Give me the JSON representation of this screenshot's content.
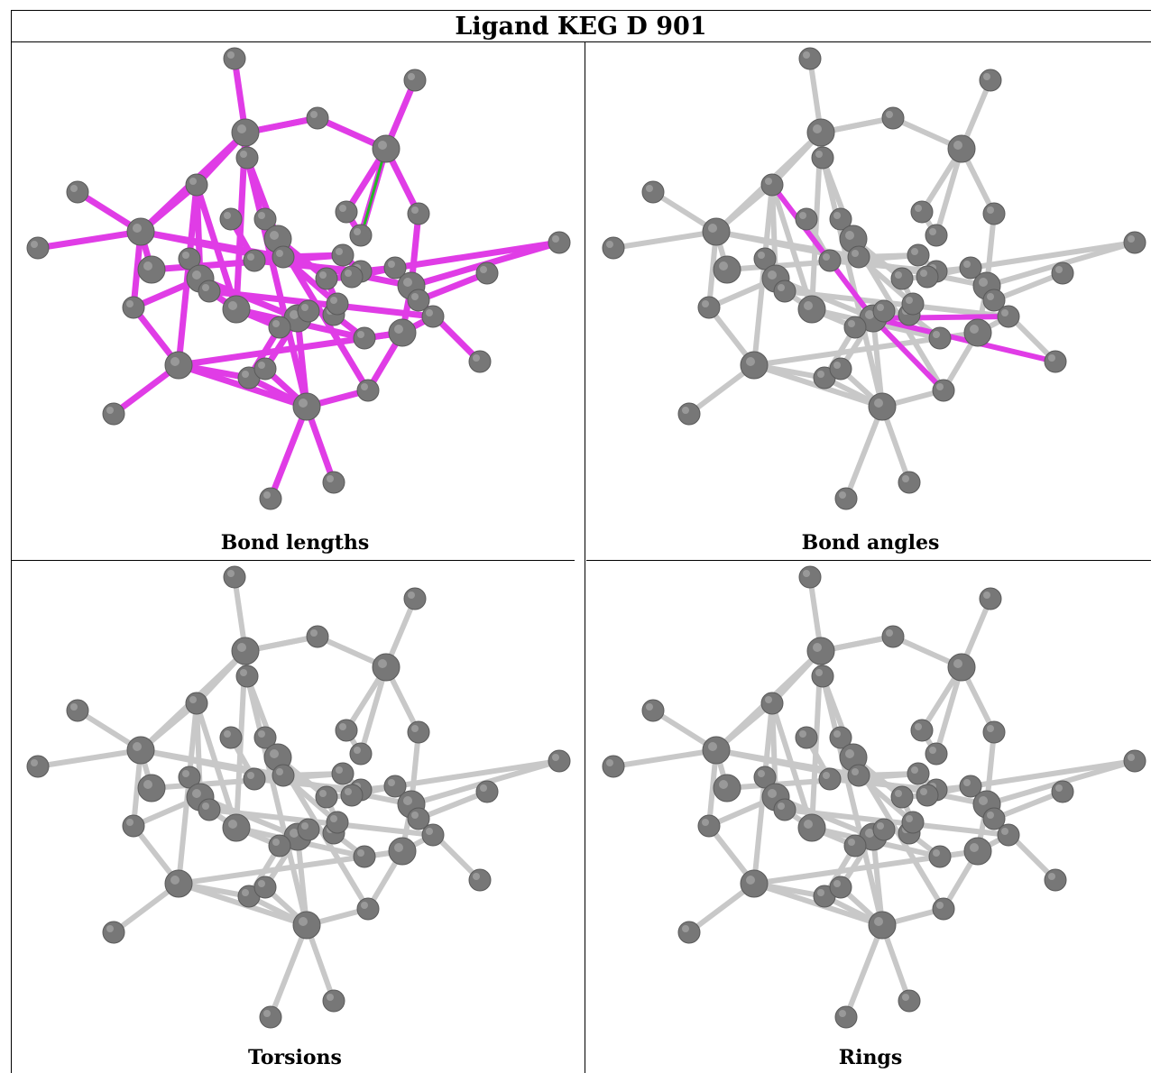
{
  "title": "Ligand KEG D 901",
  "panels": [
    {
      "caption": "Bond lengths",
      "highlight": "all"
    },
    {
      "caption": "Bond angles",
      "highlight": "angles"
    },
    {
      "caption": "Torsions",
      "highlight": "none"
    },
    {
      "caption": "Rings",
      "highlight": "none"
    }
  ],
  "colors": {
    "bond_default": "#c8c8c8",
    "bond_highlight": "#e03ce6",
    "bond_outlier": "#22bb22",
    "atom": "#777777"
  }
}
